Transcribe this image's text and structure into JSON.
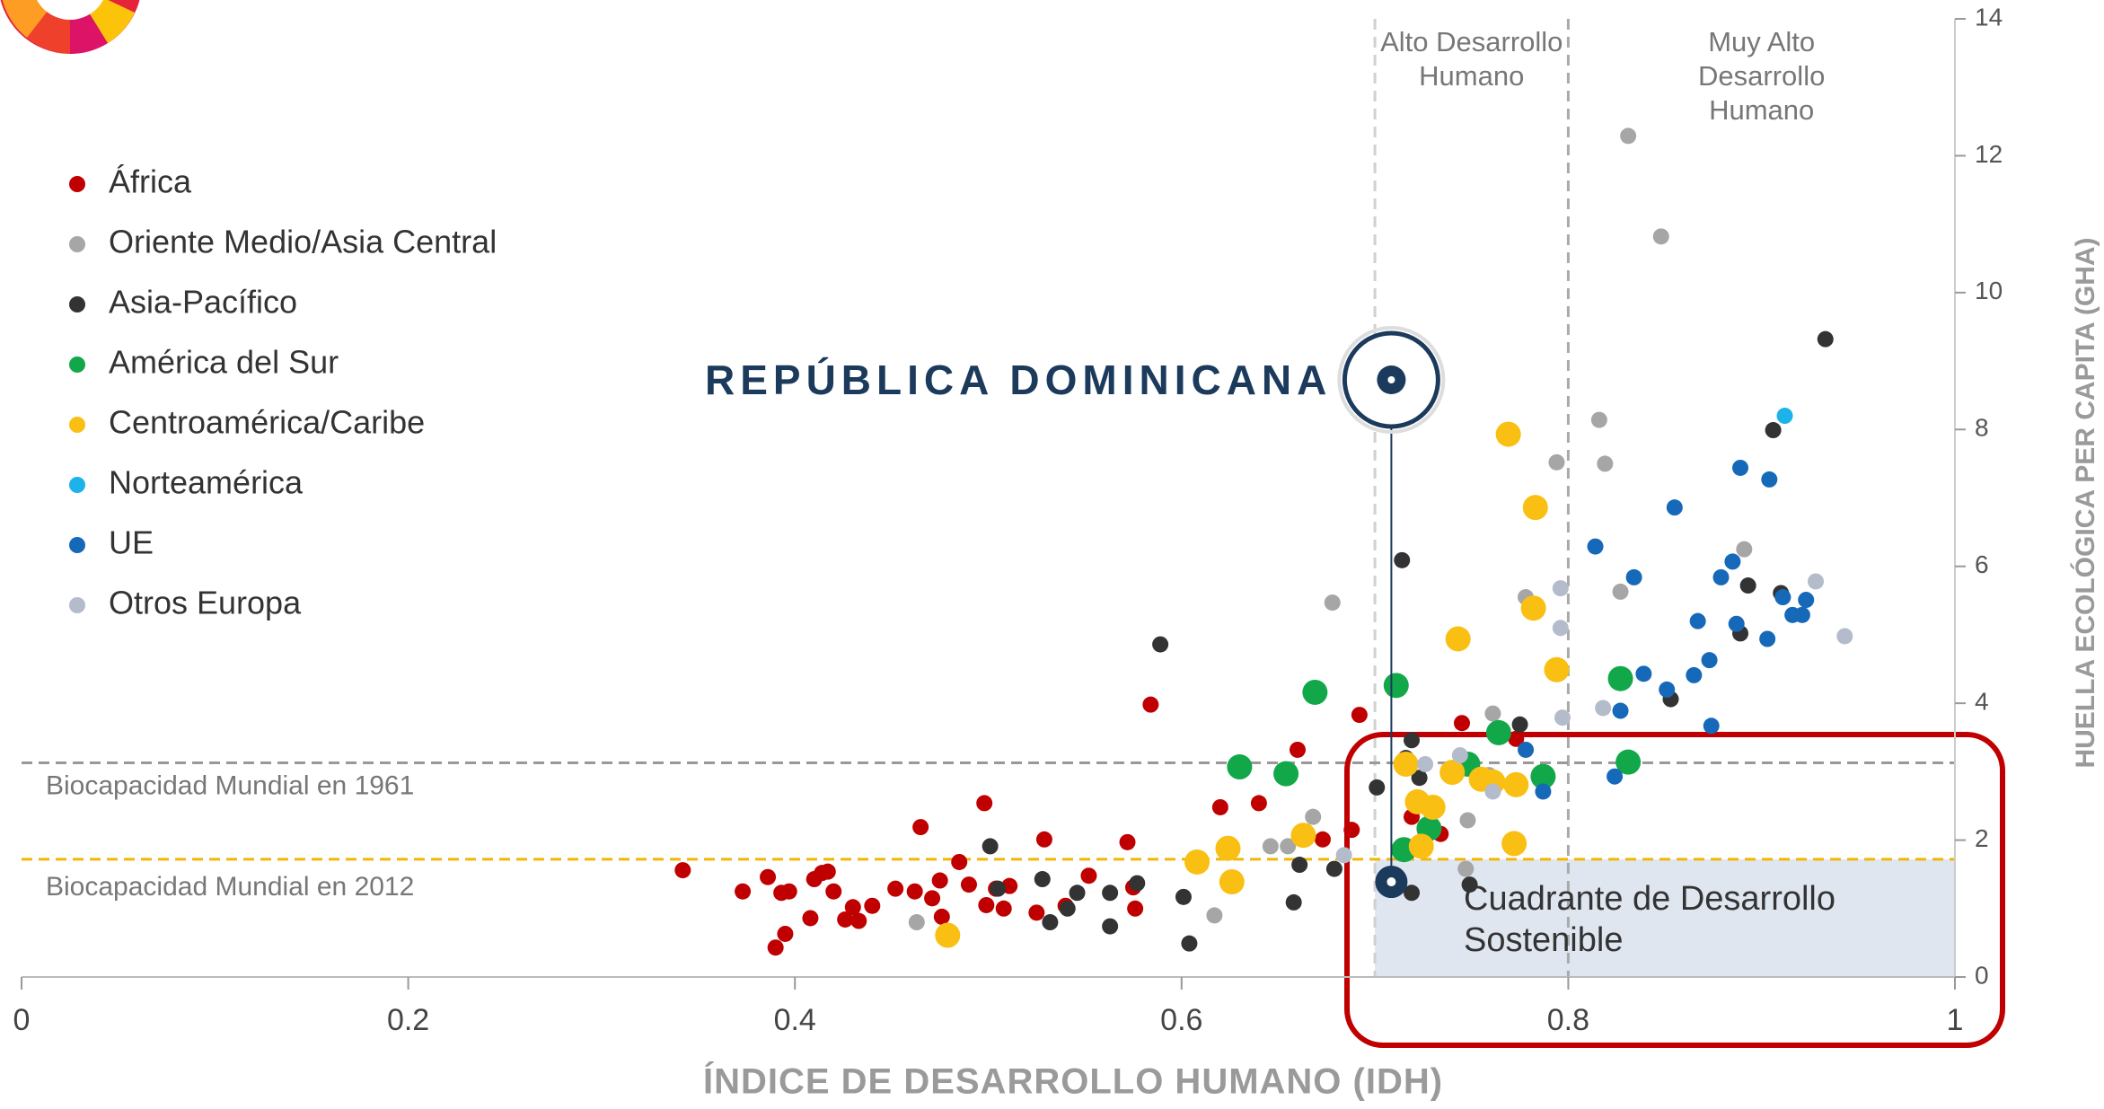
{
  "chart_data": {
    "type": "scatter",
    "xlabel": "ÍNDICE DE DESARROLLO HUMANO (IDH)",
    "ylabel": "HUELLA ECOLÓGICA PER CAPITA (GHA)",
    "xlim": [
      0,
      1
    ],
    "ylim": [
      0,
      14
    ],
    "xticks": [
      0,
      0.2,
      0.4,
      0.6,
      0.8,
      1
    ],
    "yticks": [
      0,
      2,
      4,
      6,
      8,
      10,
      12,
      14
    ],
    "legend": "upper left",
    "reference_lines": [
      {
        "label": "Biocapacidad Mundial en 1961",
        "value": 3.13,
        "color": "#999999"
      },
      {
        "label": "Biocapacidad Mundial en 2012",
        "value": 1.72,
        "color": "#f2b705"
      }
    ],
    "zones": [
      {
        "label": "Alto Desarrollo Humano",
        "x": 0.7
      },
      {
        "label": "Muy Alto Desarrollo Humano",
        "x": 0.8
      }
    ],
    "quadrant_label": "Cuadrante de Desarrollo Sostenible",
    "highlight": {
      "label": "REPÚBLICA DOMINICANA",
      "x": 0.7085,
      "value": 1.39
    },
    "series": [
      {
        "name": "África",
        "color": "#c00000",
        "size": 9,
        "x": [
          0.342,
          0.373,
          0.386,
          0.39,
          0.395,
          0.393,
          0.397,
          0.408,
          0.41,
          0.414,
          0.417,
          0.42,
          0.426,
          0.43,
          0.433,
          0.44,
          0.452,
          0.462,
          0.465,
          0.471,
          0.475,
          0.476,
          0.485,
          0.49,
          0.498,
          0.499,
          0.504,
          0.508,
          0.511,
          0.525,
          0.529,
          0.54,
          0.552,
          0.572,
          0.575,
          0.576,
          0.584,
          0.62,
          0.624,
          0.64,
          0.66,
          0.673,
          0.688,
          0.692,
          0.719,
          0.734,
          0.745,
          0.773
        ],
        "values": [
          1.56,
          1.25,
          1.46,
          0.43,
          0.63,
          1.23,
          1.25,
          0.86,
          1.43,
          1.52,
          1.54,
          1.25,
          0.84,
          1.02,
          0.82,
          1.04,
          1.29,
          1.25,
          2.19,
          1.15,
          1.41,
          0.88,
          1.68,
          1.35,
          2.54,
          1.05,
          1.29,
          1.0,
          1.33,
          0.94,
          2.01,
          1.04,
          1.48,
          1.97,
          1.31,
          1.0,
          3.98,
          2.48,
          1.82,
          2.54,
          3.32,
          2.01,
          2.15,
          3.83,
          2.34,
          2.09,
          3.71,
          3.48
        ]
      },
      {
        "name": "Oriente Medio/Asia Central",
        "color": "#a6a6a6",
        "size": 9,
        "x": [
          0.831,
          0.848,
          0.816,
          0.819,
          0.794,
          0.891,
          0.827,
          0.678,
          0.778,
          0.761,
          0.668,
          0.655,
          0.646,
          0.617,
          0.463,
          0.748,
          0.747,
          0.759
        ],
        "values": [
          12.29,
          10.82,
          8.14,
          7.5,
          7.52,
          6.25,
          5.63,
          5.47,
          5.55,
          3.85,
          2.34,
          1.91,
          1.91,
          0.9,
          0.8,
          2.29,
          1.58,
          2.95
        ]
      },
      {
        "name": "Asia-Pacífico",
        "color": "#333333",
        "size": 9,
        "x": [
          0.589,
          0.933,
          0.906,
          0.714,
          0.893,
          0.91,
          0.889,
          0.853,
          0.775,
          0.719,
          0.701,
          0.723,
          0.749,
          0.719,
          0.679,
          0.661,
          0.658,
          0.604,
          0.601,
          0.577,
          0.563,
          0.563,
          0.546,
          0.541,
          0.532,
          0.528,
          0.505,
          0.501,
          0.716
        ],
        "values": [
          4.86,
          9.32,
          7.99,
          6.09,
          5.72,
          5.61,
          5.02,
          4.06,
          3.69,
          3.46,
          2.77,
          2.91,
          1.35,
          1.23,
          1.58,
          1.64,
          1.09,
          0.49,
          1.17,
          1.37,
          1.23,
          0.74,
          1.23,
          1.0,
          0.8,
          1.43,
          1.29,
          1.91,
          3.2
        ]
      },
      {
        "name": "América del Sur",
        "color": "#12a84a",
        "size": 14,
        "x": [
          0.669,
          0.711,
          0.63,
          0.654,
          0.764,
          0.787,
          0.827,
          0.831,
          0.748,
          0.715,
          0.728
        ],
        "values": [
          4.16,
          4.26,
          3.07,
          2.97,
          3.57,
          2.93,
          4.36,
          3.14,
          3.11,
          1.86,
          2.17
        ]
      },
      {
        "name": "Centroamérica/Caribe",
        "color": "#f9bf13",
        "size": 14,
        "x": [
          0.769,
          0.783,
          0.743,
          0.782,
          0.794,
          0.716,
          0.74,
          0.755,
          0.761,
          0.773,
          0.722,
          0.73,
          0.724,
          0.772,
          0.624,
          0.608,
          0.626,
          0.663,
          0.479
        ],
        "values": [
          7.93,
          6.86,
          4.94,
          5.39,
          4.49,
          3.11,
          2.99,
          2.89,
          2.85,
          2.81,
          2.56,
          2.48,
          1.91,
          1.95,
          1.88,
          1.68,
          1.39,
          2.07,
          0.61
        ]
      },
      {
        "name": "Norteamérica",
        "color": "#1db3ea",
        "size": 9,
        "x": [
          0.912
        ],
        "values": [
          8.2
        ]
      },
      {
        "name": "UE",
        "color": "#1669b8",
        "size": 9,
        "x": [
          0.889,
          0.904,
          0.855,
          0.814,
          0.885,
          0.879,
          0.834,
          0.867,
          0.887,
          0.911,
          0.923,
          0.916,
          0.921,
          0.903,
          0.865,
          0.873,
          0.839,
          0.827,
          0.851,
          0.874,
          0.824,
          0.778,
          0.787
        ],
        "values": [
          7.44,
          7.27,
          6.86,
          6.29,
          6.07,
          5.84,
          5.84,
          5.2,
          5.16,
          5.55,
          5.51,
          5.29,
          5.29,
          4.94,
          4.41,
          4.63,
          4.43,
          3.89,
          4.2,
          3.67,
          2.93,
          3.32,
          2.71
        ]
      },
      {
        "name": "Otros Europa",
        "color": "#b4bccb",
        "size": 9,
        "x": [
          0.928,
          0.943,
          0.796,
          0.796,
          0.818,
          0.797,
          0.744,
          0.726,
          0.761,
          0.684
        ],
        "values": [
          5.78,
          4.98,
          5.68,
          5.1,
          3.93,
          3.79,
          3.24,
          3.11,
          2.71,
          1.78
        ]
      }
    ]
  }
}
